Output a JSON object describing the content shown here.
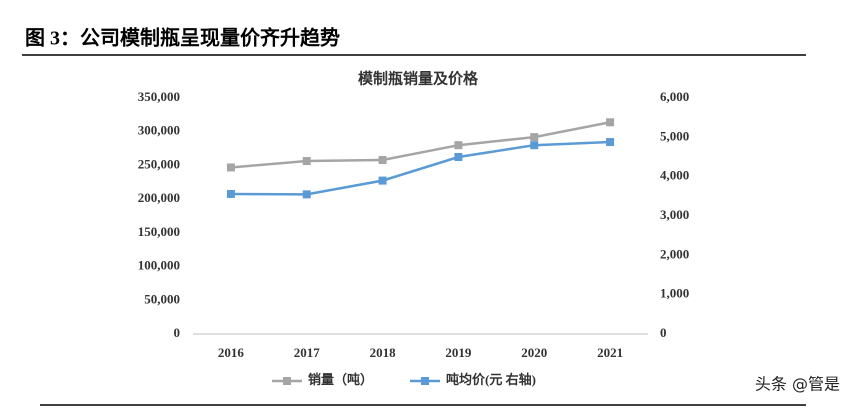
{
  "header": {
    "title": "图 3：公司模制瓶呈现量价齐升趋势"
  },
  "chart_data": {
    "type": "line",
    "title": "模制瓶销量及价格",
    "categories": [
      "2016",
      "2017",
      "2018",
      "2019",
      "2020",
      "2021"
    ],
    "series": [
      {
        "name": "销量（吨）",
        "color": "#a5a5a5",
        "values": [
          247000,
          256500,
          258000,
          280000,
          292000,
          314000
        ]
      },
      {
        "name": "吨均价(元 右轴)",
        "color": "#5b9bd5",
        "axis": "y2",
        "values": [
          3560,
          3550,
          3900,
          4500,
          4800,
          4880
        ]
      }
    ],
    "ylim": [
      0,
      350000
    ],
    "yticks": [
      0,
      {
        "value": 50000,
        "label": "50,000"
      },
      {
        "value": 100000,
        "label": "100,000"
      },
      {
        "value": 150000,
        "label": "150,000"
      },
      {
        "value": 200000,
        "label": "200,000"
      },
      {
        "value": 250000,
        "label": "250,000"
      },
      {
        "value": 300000,
        "label": "300,000"
      },
      {
        "value": 350000,
        "label": "350,000"
      }
    ],
    "y2lim": [
      0,
      6000
    ],
    "y2ticks": [
      0,
      {
        "value": 1000,
        "label": "1,000"
      },
      {
        "value": 2000,
        "label": "2,000"
      },
      {
        "value": 3000,
        "label": "3,000"
      },
      {
        "value": 4000,
        "label": "4,000"
      },
      {
        "value": 5000,
        "label": "5,000"
      },
      {
        "value": 6000,
        "label": "6,000"
      }
    ],
    "grid": false,
    "legend": "bottom"
  },
  "watermark": "头条 @管是"
}
